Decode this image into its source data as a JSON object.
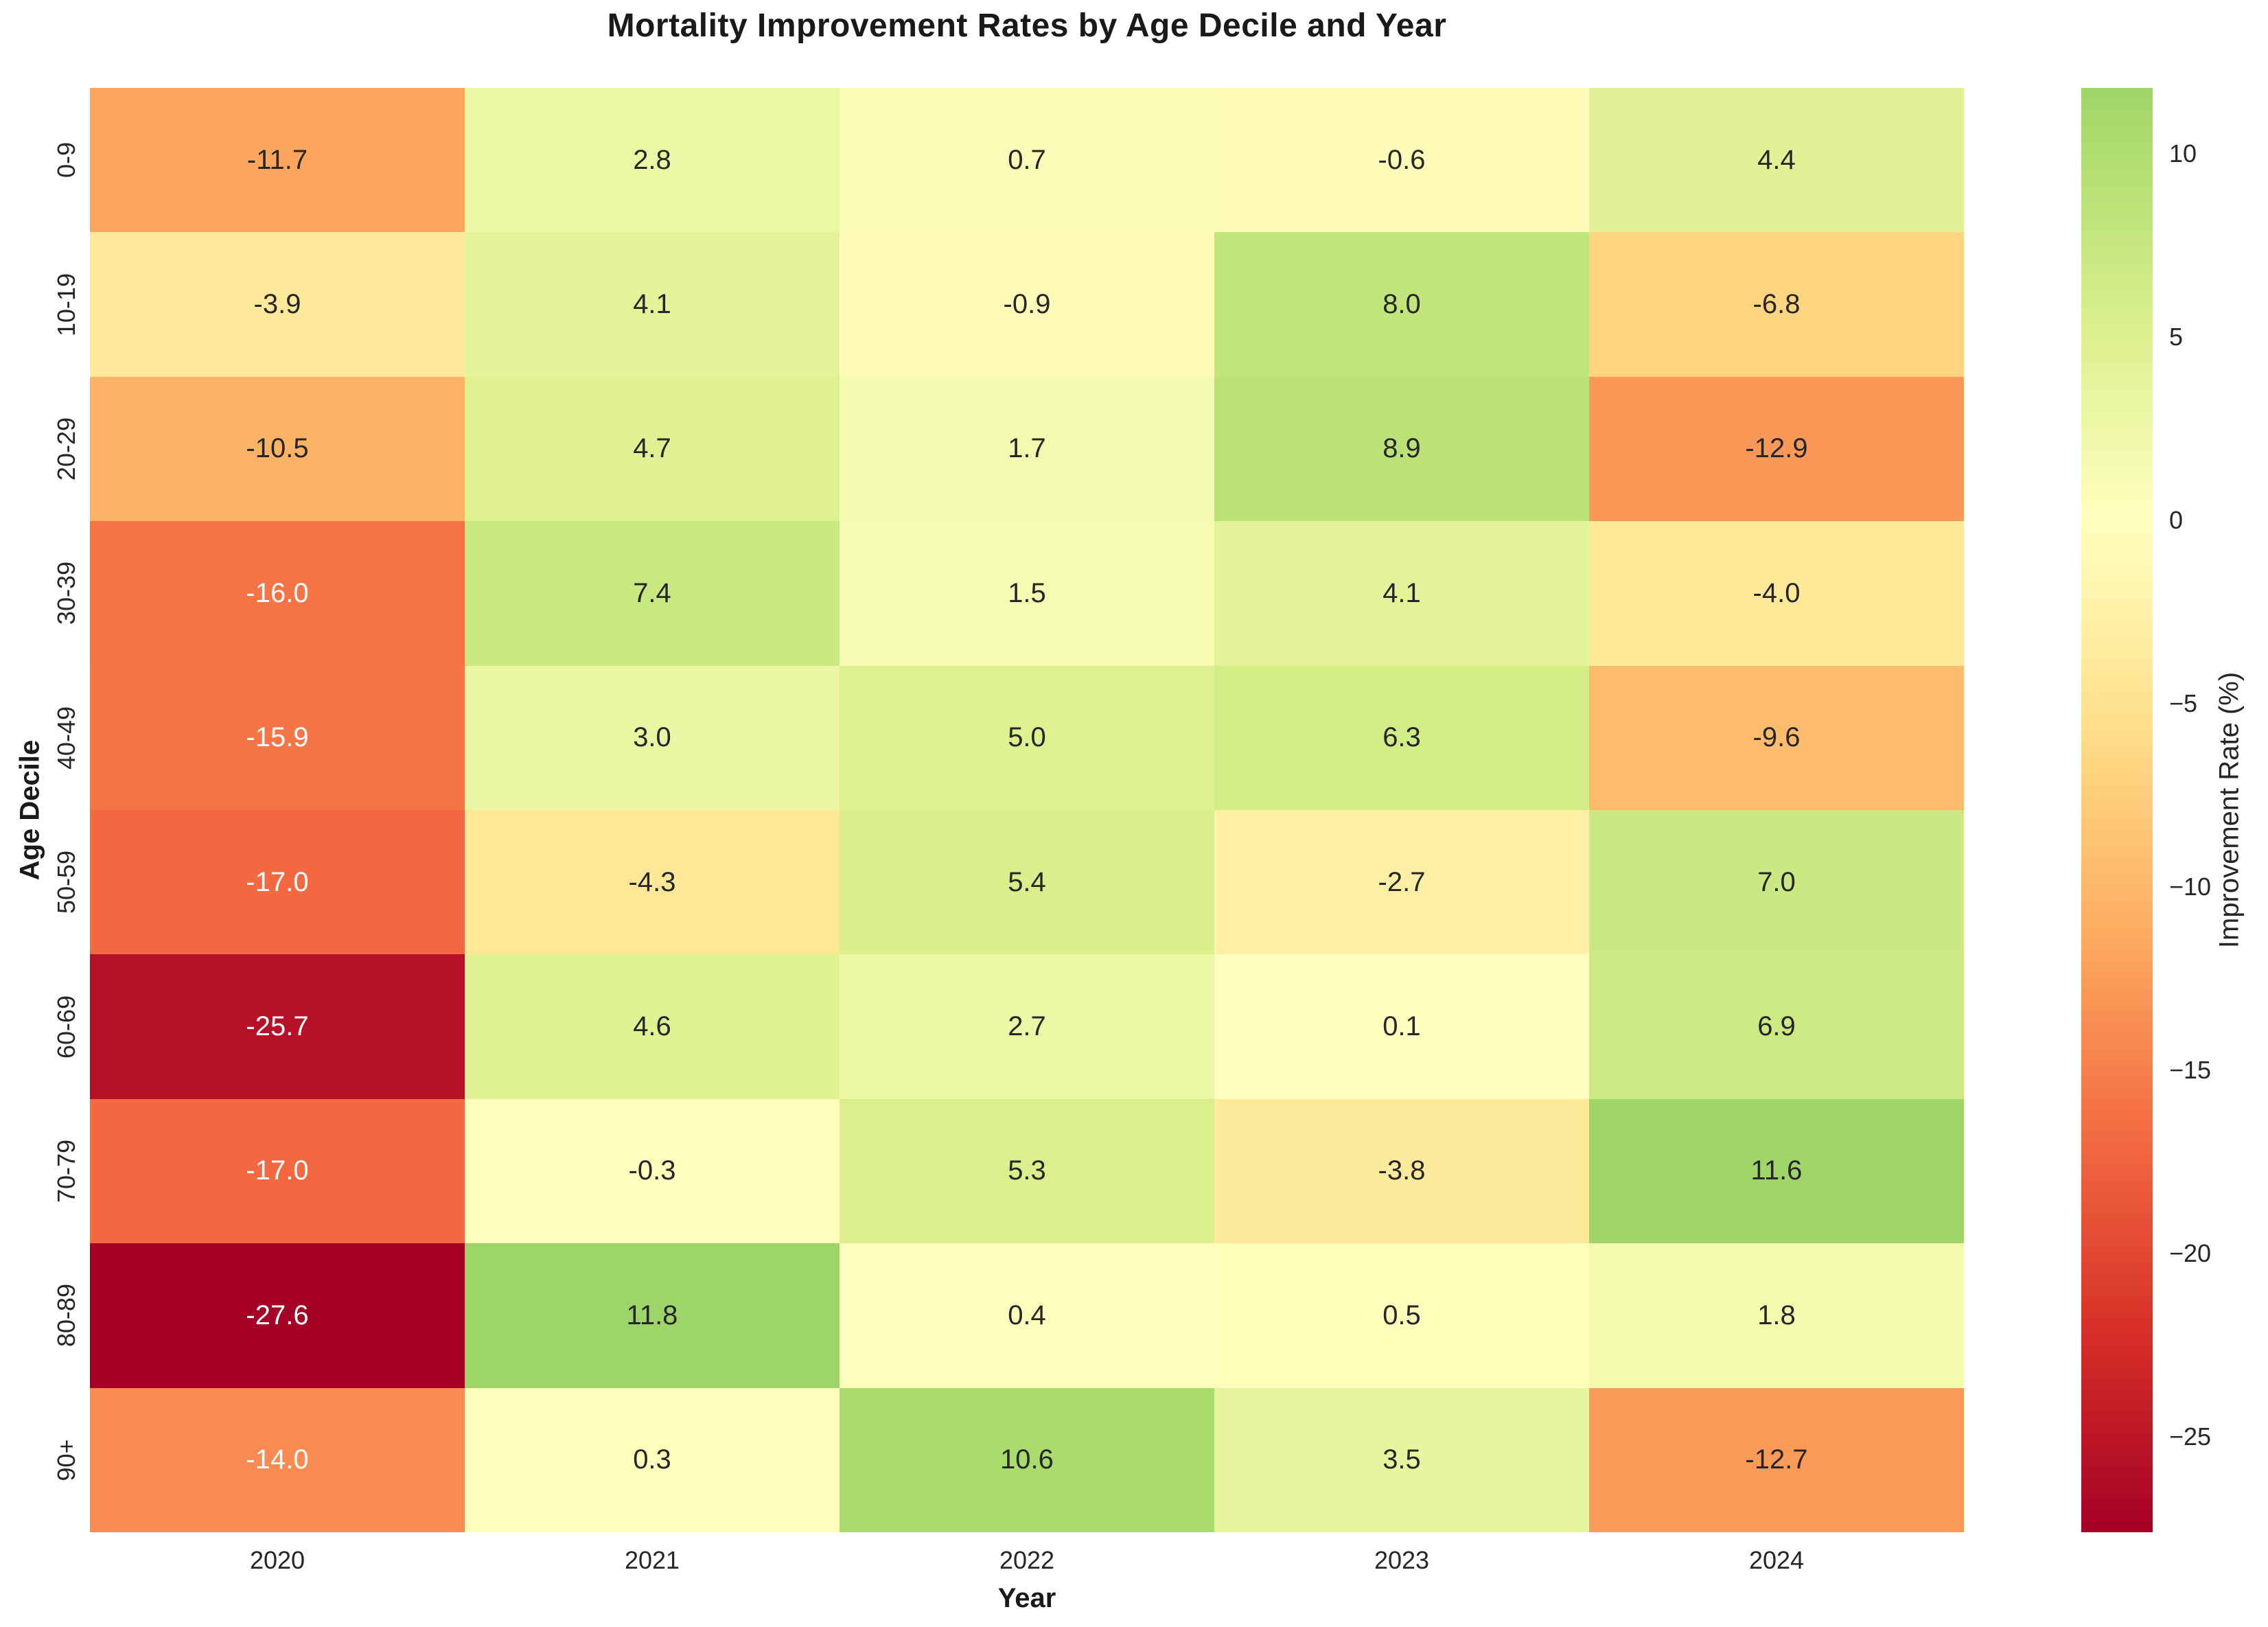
{
  "title": "Mortality Improvement Rates by Age Decile and Year",
  "axes": {
    "x_label": "Year",
    "y_label": "Age Decile"
  },
  "chart_data": {
    "type": "heatmap",
    "x": [
      "2020",
      "2021",
      "2022",
      "2023",
      "2024"
    ],
    "y": [
      "0-9",
      "10-19",
      "20-29",
      "30-39",
      "40-49",
      "50-59",
      "60-69",
      "70-79",
      "80-89",
      "90+"
    ],
    "values": [
      [
        -11.7,
        2.8,
        0.7,
        -0.6,
        4.4
      ],
      [
        -3.9,
        4.1,
        -0.9,
        8.0,
        -6.8
      ],
      [
        -10.5,
        4.7,
        1.7,
        8.9,
        -12.9
      ],
      [
        -16.0,
        7.4,
        1.5,
        4.1,
        -4.0
      ],
      [
        -15.9,
        3.0,
        5.0,
        6.3,
        -9.6
      ],
      [
        -17.0,
        -4.3,
        5.4,
        -2.7,
        7.0
      ],
      [
        -25.7,
        4.6,
        2.7,
        0.1,
        6.9
      ],
      [
        -17.0,
        -0.3,
        5.3,
        -3.8,
        11.6
      ],
      [
        -27.6,
        11.8,
        0.4,
        0.5,
        1.8
      ],
      [
        -14.0,
        0.3,
        10.6,
        3.5,
        -12.7
      ]
    ],
    "colormap": {
      "name": "RdYlGn",
      "norm_min": -27.6,
      "norm_max": 27.6,
      "anchors": [
        {
          "t": 0.0,
          "color": "#a50026"
        },
        {
          "t": 0.1,
          "color": "#d73027"
        },
        {
          "t": 0.2,
          "color": "#f46d43"
        },
        {
          "t": 0.3,
          "color": "#fdae61"
        },
        {
          "t": 0.4,
          "color": "#fee08b"
        },
        {
          "t": 0.5,
          "color": "#ffffbf"
        },
        {
          "t": 0.6,
          "color": "#d9ef8b"
        },
        {
          "t": 0.7,
          "color": "#a6d96a"
        },
        {
          "t": 0.8,
          "color": "#66bd63"
        },
        {
          "t": 0.9,
          "color": "#1a9850"
        },
        {
          "t": 1.0,
          "color": "#006837"
        }
      ]
    },
    "colorbar": {
      "label": "Improvement Rate (%)",
      "display_min": -27.6,
      "display_max": 11.8,
      "tick_values": [
        10,
        5,
        0,
        -5,
        -10,
        -15,
        -20,
        -25
      ],
      "tick_labels": [
        "10",
        "5",
        "0",
        "−5",
        "−10",
        "−15",
        "−20",
        "−25"
      ]
    },
    "annotation_colors": {
      "dark": "#262626",
      "light": "#ffffff"
    },
    "legend_position": "right",
    "grid": false
  }
}
